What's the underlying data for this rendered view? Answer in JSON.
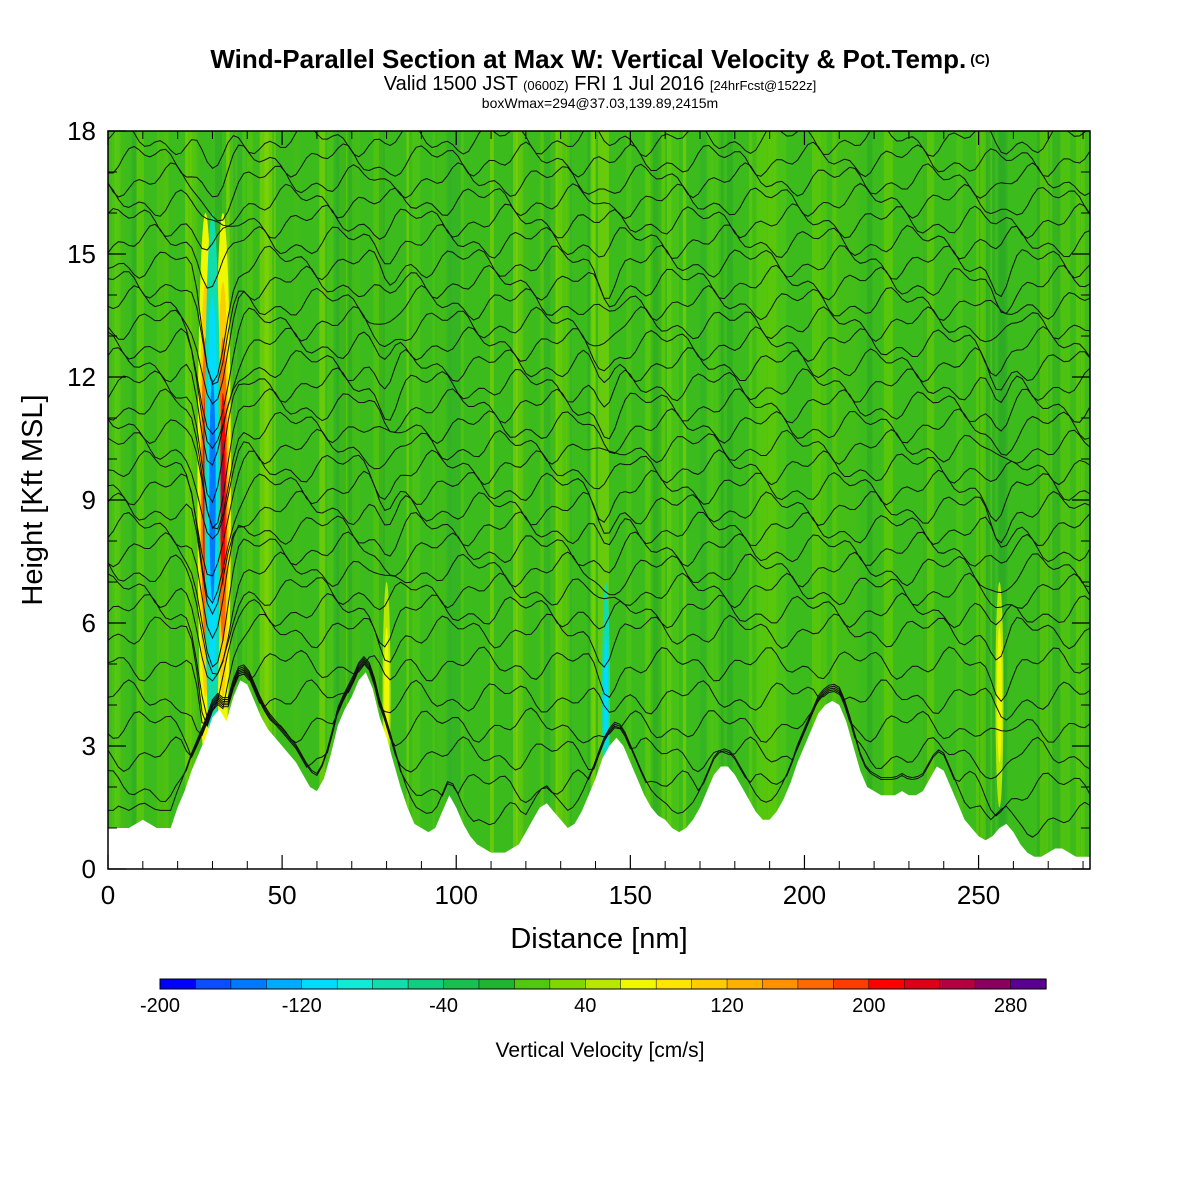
{
  "title": {
    "main": "Wind-Parallel Section at Max W: Vertical Velocity & Pot.Temp.",
    "copyright": "(C)",
    "valid_prefix": "Valid 1500 JST",
    "valid_utc": "(0600Z)",
    "valid_date": "FRI 1 Jul 2016",
    "forecast": "[24hrFcst@1522z]",
    "boxinfo": "boxWmax=294@37.03,139.89,2415m"
  },
  "chart_data": {
    "type": "heatmap",
    "xlabel": "Distance [nm]",
    "ylabel": "Height [Kft MSL]",
    "xlim": [
      0,
      282
    ],
    "ylim": [
      0,
      18
    ],
    "x_ticks": [
      "0",
      "50",
      "100",
      "150",
      "200",
      "250"
    ],
    "y_ticks": [
      "0",
      "3",
      "6",
      "9",
      "12",
      "15",
      "18"
    ],
    "terrain_profile": {
      "x": [
        0,
        6,
        10,
        14,
        18,
        20,
        22,
        24,
        26,
        28,
        30,
        32,
        34,
        36,
        38,
        40,
        42,
        44,
        46,
        48,
        50,
        52,
        54,
        56,
        58,
        60,
        62,
        64,
        66,
        68,
        70,
        72,
        74,
        76,
        78,
        80,
        82,
        84,
        86,
        88,
        90,
        92,
        94,
        96,
        98,
        100,
        102,
        104,
        106,
        108,
        110,
        112,
        114,
        116,
        118,
        120,
        122,
        124,
        126,
        128,
        130,
        132,
        134,
        136,
        138,
        140,
        142,
        144,
        146,
        148,
        150,
        152,
        154,
        156,
        158,
        160,
        162,
        164,
        166,
        168,
        170,
        172,
        174,
        176,
        178,
        180,
        182,
        184,
        186,
        188,
        190,
        192,
        194,
        196,
        198,
        200,
        202,
        204,
        206,
        208,
        210,
        212,
        214,
        216,
        218,
        220,
        222,
        224,
        226,
        228,
        230,
        232,
        234,
        236,
        238,
        240,
        242,
        244,
        246,
        248,
        250,
        252,
        254,
        256,
        258,
        260,
        262,
        264,
        266,
        268,
        270,
        272,
        274,
        276,
        278,
        280,
        282
      ],
      "height_kft": [
        1.0,
        1.0,
        1.2,
        1.0,
        1.0,
        1.5,
        1.9,
        2.4,
        2.8,
        3.2,
        3.7,
        3.9,
        3.6,
        4.2,
        4.6,
        4.5,
        4.1,
        3.7,
        3.4,
        3.2,
        3.0,
        2.8,
        2.6,
        2.3,
        2.0,
        1.9,
        2.2,
        2.8,
        3.5,
        3.9,
        4.2,
        4.6,
        4.8,
        4.4,
        3.7,
        3.2,
        2.6,
        2.0,
        1.5,
        1.1,
        1.0,
        0.9,
        1.0,
        1.4,
        1.8,
        1.5,
        1.1,
        0.8,
        0.6,
        0.5,
        0.4,
        0.4,
        0.4,
        0.5,
        0.6,
        0.9,
        1.2,
        1.5,
        1.6,
        1.4,
        1.2,
        1.0,
        1.1,
        1.4,
        1.8,
        2.2,
        2.7,
        3.0,
        3.2,
        3.0,
        2.6,
        2.2,
        1.8,
        1.5,
        1.3,
        1.2,
        1.0,
        0.9,
        1.0,
        1.2,
        1.5,
        1.9,
        2.3,
        2.5,
        2.5,
        2.3,
        2.0,
        1.7,
        1.4,
        1.2,
        1.2,
        1.4,
        1.7,
        2.1,
        2.6,
        3.0,
        3.4,
        3.8,
        4.0,
        4.1,
        4.0,
        3.6,
        3.0,
        2.4,
        2.0,
        1.9,
        1.8,
        1.8,
        1.8,
        1.9,
        1.8,
        1.8,
        1.9,
        2.2,
        2.5,
        2.4,
        2.0,
        1.6,
        1.2,
        1.0,
        0.8,
        0.7,
        0.8,
        1.0,
        1.1,
        0.9,
        0.6,
        0.4,
        0.3,
        0.3,
        0.4,
        0.5,
        0.5,
        0.4,
        0.3,
        0.3,
        0.3
      ]
    },
    "isentrope_base_heights_kft": [
      1.2,
      2.0,
      2.8,
      3.5,
      4.2,
      5.0,
      5.8,
      6.3,
      6.8,
      7.3,
      7.8,
      8.3,
      8.8,
      9.3,
      9.8,
      10.3,
      10.8,
      11.3,
      11.8,
      12.3,
      12.8,
      13.3,
      13.8,
      14.3,
      14.8,
      15.3,
      15.8,
      16.3,
      16.8,
      17.3,
      17.8
    ],
    "updraft_cores": [
      {
        "x": 28,
        "w_cms": 260
      },
      {
        "x": 33,
        "w_cms": 294
      },
      {
        "x": 30,
        "w_cms": -160
      },
      {
        "x": 80,
        "w_cms": 60
      },
      {
        "x": 143,
        "w_cms": -90
      },
      {
        "x": 256,
        "w_cms": 110
      }
    ]
  },
  "colorbar": {
    "title": "Vertical Velocity [cm/s]",
    "labels": [
      "-200",
      "-120",
      "-40",
      "40",
      "120",
      "200",
      "280"
    ],
    "colors": [
      "#0000ff",
      "#0a4eff",
      "#0078ff",
      "#00aaff",
      "#00dcff",
      "#10ebd8",
      "#10dcac",
      "#10cd80",
      "#18c050",
      "#20b430",
      "#50c810",
      "#80d800",
      "#b8e800",
      "#f0f800",
      "#ffe600",
      "#ffcc00",
      "#ffb000",
      "#ff9000",
      "#ff6a00",
      "#ff3c00",
      "#ff0000",
      "#dd0018",
      "#b40040",
      "#8a0060",
      "#5a0090"
    ]
  }
}
